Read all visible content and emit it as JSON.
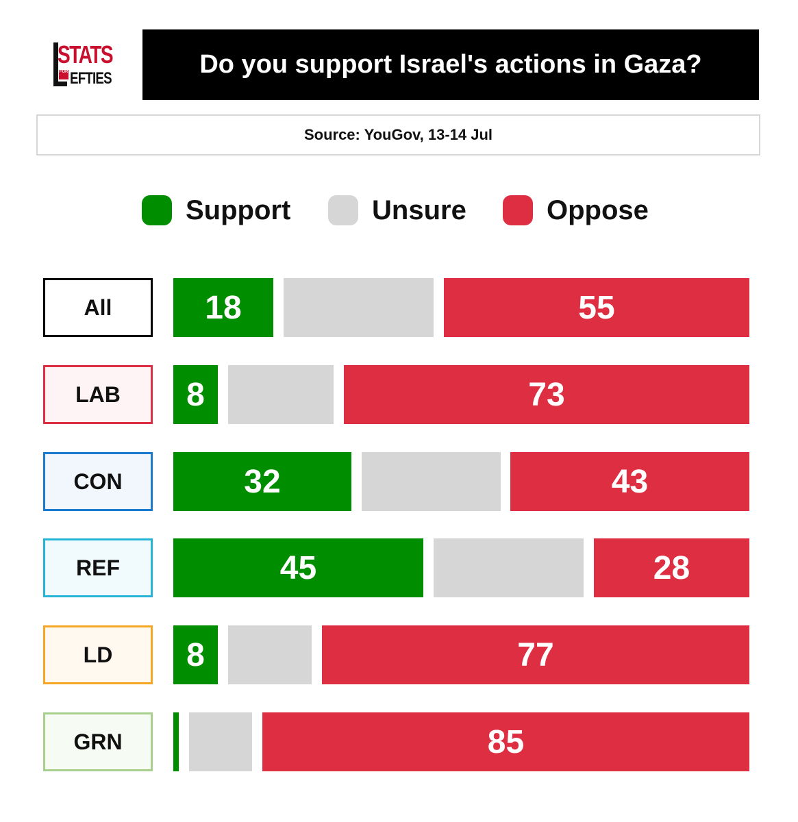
{
  "logo": {
    "alt": "STATS FOR LEFTIES",
    "line1": "STATS",
    "for": "FOR",
    "line2": "EFTIES"
  },
  "header": {
    "title": "Do you support Israel's actions in Gaza?"
  },
  "source": "Source: YouGov, 13-14 Jul",
  "colors": {
    "support": "#008e00",
    "unsure": "#d6d6d6",
    "oppose": "#de2f42"
  },
  "legend": [
    {
      "key": "support",
      "label": "Support"
    },
    {
      "key": "unsure",
      "label": "Unsure"
    },
    {
      "key": "oppose",
      "label": "Oppose"
    }
  ],
  "chart_data": {
    "type": "bar",
    "orientation": "horizontal",
    "stacked": true,
    "title": "Do you support Israel's actions in Gaza?",
    "categories": [
      "All",
      "LAB",
      "CON",
      "REF",
      "LD",
      "GRN"
    ],
    "category_border_colors": [
      "#000000",
      "#de2f42",
      "#1a7ad0",
      "#25b4d6",
      "#f6a623",
      "#a8cf8e"
    ],
    "category_fill_colors": [
      "#ffffff",
      "#fff4f5",
      "#f1f7fd",
      "#f1fafc",
      "#fff9f0",
      "#f6fbf3"
    ],
    "series": [
      {
        "name": "Support",
        "values": [
          18,
          8,
          32,
          45,
          8,
          1
        ],
        "labels": [
          "18",
          "8",
          "32",
          "45",
          "8",
          ""
        ]
      },
      {
        "name": "Unsure",
        "values": [
          27,
          19,
          25,
          27,
          15,
          11
        ],
        "labels": [
          "",
          "",
          "",
          "",
          "",
          ""
        ]
      },
      {
        "name": "Oppose",
        "values": [
          55,
          73,
          43,
          28,
          77,
          85
        ],
        "labels": [
          "55",
          "73",
          "43",
          "28",
          "77",
          "85"
        ]
      }
    ],
    "xlim": [
      0,
      100
    ],
    "legend_position": "top",
    "grid": false
  }
}
